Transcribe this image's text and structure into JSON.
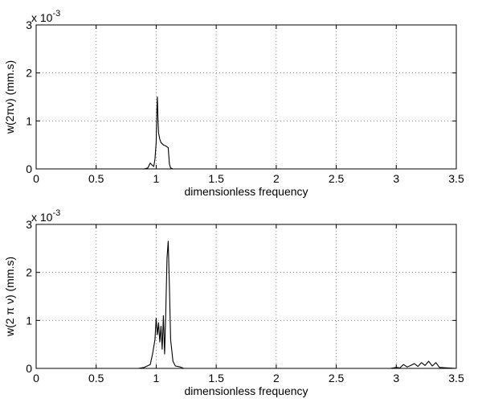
{
  "chart_data": [
    {
      "type": "line",
      "xlabel": "dimensionless frequency",
      "ylabel": "w(2πν) (mm.s)",
      "exponent_base": "x 10",
      "exponent_power": "-3",
      "xlim": [
        0,
        3.5
      ],
      "ylim": [
        0,
        3
      ],
      "grid": true,
      "xticks": [
        "0",
        "0.5",
        "1",
        "1.5",
        "2",
        "2.5",
        "3",
        "3.5"
      ],
      "yticks": [
        "0",
        "1",
        "2",
        "3"
      ],
      "series": [
        {
          "x": [
            0,
            0.9,
            0.93,
            0.95,
            0.97,
            0.98,
            0.99,
            1.0,
            1.005,
            1.01,
            1.015,
            1.02,
            1.03,
            1.04,
            1.06,
            1.08,
            1.09,
            1.1,
            1.11,
            1.12,
            1.14,
            3.5
          ],
          "y": [
            0,
            0,
            0.02,
            0.12,
            0.07,
            0.05,
            0.2,
            0.55,
            1.2,
            1.5,
            1.0,
            0.75,
            0.62,
            0.55,
            0.5,
            0.48,
            0.46,
            0.44,
            0.1,
            0.02,
            0,
            0
          ]
        }
      ]
    },
    {
      "type": "line",
      "xlabel": "dimensionless frequency",
      "ylabel": "w(2 π ν) (mm.s)",
      "exponent_base": "x 10",
      "exponent_power": "-3",
      "xlim": [
        0,
        3.5
      ],
      "ylim": [
        0,
        3
      ],
      "grid": true,
      "xticks": [
        "0",
        "0.5",
        "1",
        "1.5",
        "2",
        "2.5",
        "3",
        "3.5"
      ],
      "yticks": [
        "0",
        "1",
        "2",
        "3"
      ],
      "series": [
        {
          "x": [
            0,
            0.85,
            0.9,
            0.95,
            0.97,
            0.99,
            1.0,
            1.01,
            1.02,
            1.03,
            1.04,
            1.05,
            1.06,
            1.07,
            1.08,
            1.09,
            1.1,
            1.11,
            1.12,
            1.14,
            1.16,
            1.2,
            1.23,
            1.3,
            2.95,
            3.0,
            3.03,
            3.06,
            3.09,
            3.12,
            3.15,
            3.18,
            3.21,
            3.24,
            3.27,
            3.3,
            3.33,
            3.36,
            3.5
          ],
          "y": [
            0,
            0,
            0.02,
            0.08,
            0.3,
            0.6,
            1.05,
            0.7,
            0.95,
            0.55,
            0.88,
            0.4,
            1.1,
            0.3,
            1.2,
            2.3,
            2.65,
            1.7,
            0.6,
            0.15,
            0.05,
            0.03,
            0,
            0,
            0,
            0.02,
            0.01,
            0.08,
            0.03,
            0.06,
            0.1,
            0.04,
            0.12,
            0.06,
            0.15,
            0.05,
            0.12,
            0.02,
            0
          ]
        }
      ]
    }
  ]
}
